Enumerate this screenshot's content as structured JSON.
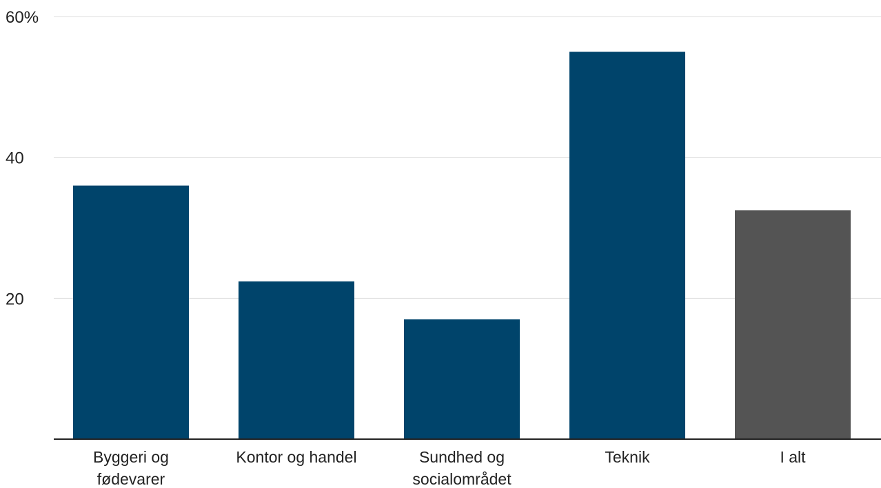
{
  "chart_data": {
    "type": "bar",
    "title": "",
    "xlabel": "",
    "ylabel": "",
    "categories": [
      [
        "Byggeri og",
        "fødevarer"
      ],
      [
        "Kontor og handel"
      ],
      [
        "Sundhed og",
        "socialområdet"
      ],
      [
        "Teknik"
      ],
      [
        "I alt"
      ]
    ],
    "values": [
      36,
      22.4,
      17,
      55,
      32.5
    ],
    "bar_colors": [
      "#00446b",
      "#00446b",
      "#00446b",
      "#00446b",
      "#545454"
    ],
    "ylim": [
      0,
      60
    ],
    "yticks": [
      {
        "value": 20,
        "label": "20"
      },
      {
        "value": 40,
        "label": "40"
      },
      {
        "value": 60,
        "label": "60%"
      }
    ],
    "grid": true,
    "legend": "none"
  }
}
